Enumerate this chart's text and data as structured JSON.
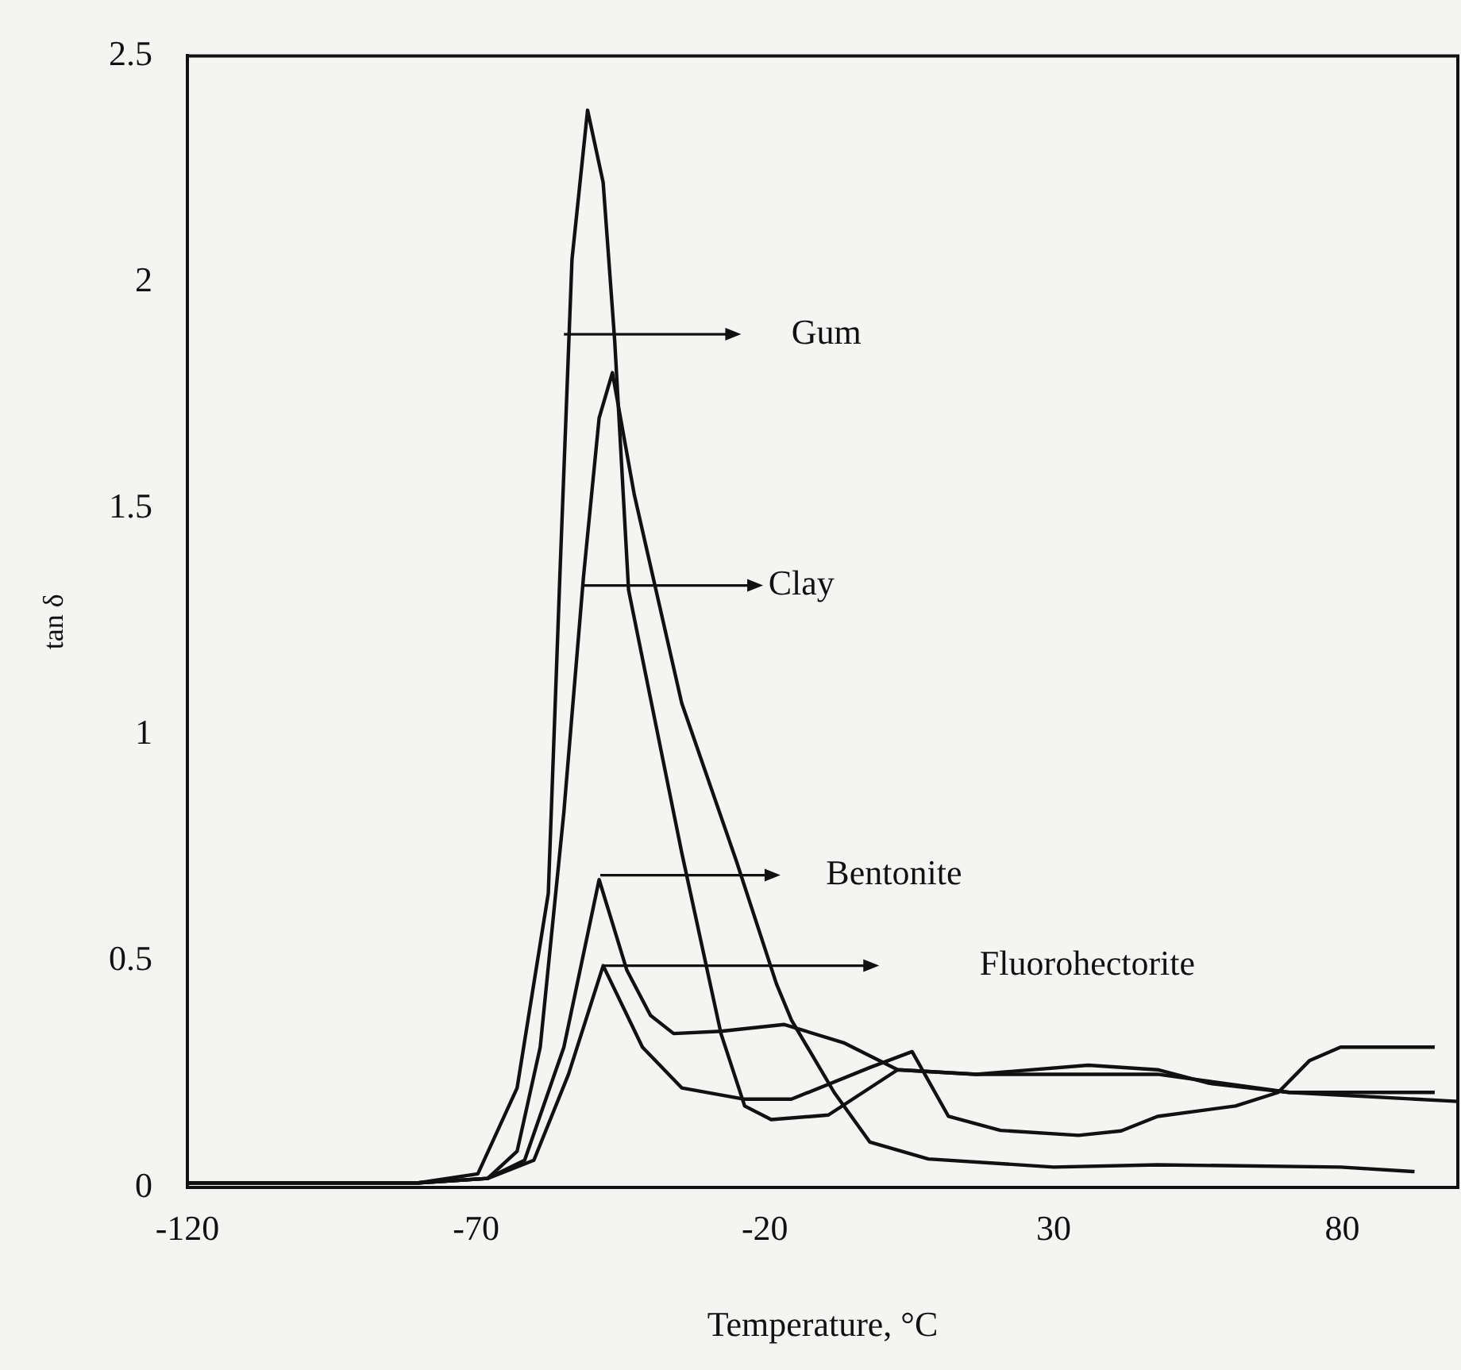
{
  "chart_data": {
    "type": "line",
    "xlabel": "Temperature, °C",
    "ylabel": "tan δ",
    "xlim": [
      -120,
      100
    ],
    "xticks": [
      -120,
      -70,
      -20,
      30,
      80
    ],
    "ylim": [
      0,
      2.5
    ],
    "yticks": [
      0,
      0.5,
      1,
      1.5,
      2,
      2.5
    ],
    "grid": false,
    "legend": "center",
    "marker": "none",
    "line_style": "solid",
    "series": [
      {
        "name": "Gum",
        "color": "#111111",
        "x": [
          -120,
          -80,
          -69.7,
          -62.9,
          -57.5,
          -55.5,
          -53.4,
          -50.7,
          -48,
          -46,
          -43.6,
          -34.4,
          -27.6,
          -23.5,
          -18.9,
          -9,
          3,
          16.6,
          36,
          48,
          57,
          70.8,
          96
        ],
        "values": [
          0.01,
          0.01,
          0.03,
          0.22,
          0.65,
          1.35,
          2.05,
          2.38,
          2.22,
          1.87,
          1.32,
          0.74,
          0.34,
          0.18,
          0.15,
          0.16,
          0.26,
          0.25,
          0.27,
          0.26,
          0.23,
          0.21,
          0.21
        ]
      },
      {
        "name": "Clay",
        "color": "#111111",
        "x": [
          -120,
          -80,
          -68,
          -62.9,
          -58.9,
          -54.8,
          -51.4,
          -48.7,
          -46.4,
          -42.6,
          -34.4,
          -24.9,
          -18,
          -15.4,
          -8,
          -1.8,
          8.3,
          30,
          48,
          79.7,
          92.5
        ],
        "values": [
          0.01,
          0.01,
          0.02,
          0.08,
          0.31,
          0.83,
          1.35,
          1.7,
          1.8,
          1.53,
          1.07,
          0.72,
          0.45,
          0.37,
          0.21,
          0.1,
          0.063,
          0.045,
          0.05,
          0.045,
          0.035
        ]
      },
      {
        "name": "Bentonite",
        "color": "#111111",
        "x": [
          -120,
          -80,
          -68,
          -61.6,
          -54.8,
          -48.7,
          -43.9,
          -39.8,
          -35.8,
          -27.6,
          -16.7,
          -6.4,
          3,
          16.6,
          48,
          70.8,
          100
        ],
        "values": [
          0.01,
          0.01,
          0.02,
          0.06,
          0.31,
          0.68,
          0.48,
          0.38,
          0.34,
          0.345,
          0.36,
          0.32,
          0.26,
          0.25,
          0.25,
          0.21,
          0.19
        ]
      },
      {
        "name": "Fluorohectorite",
        "color": "#111111",
        "x": [
          -120,
          -80,
          -68,
          -60,
          -54,
          -48,
          -41.2,
          -34.4,
          -23.5,
          -15.4,
          -1.8,
          5.5,
          11.8,
          20.8,
          34.3,
          41.7,
          48,
          61.5,
          68.9,
          74.3,
          79.7,
          96
        ],
        "values": [
          0.01,
          0.01,
          0.02,
          0.06,
          0.25,
          0.49,
          0.31,
          0.22,
          0.195,
          0.195,
          0.265,
          0.3,
          0.157,
          0.126,
          0.115,
          0.125,
          0.157,
          0.18,
          0.21,
          0.28,
          0.31,
          0.31
        ]
      }
    ]
  }
}
